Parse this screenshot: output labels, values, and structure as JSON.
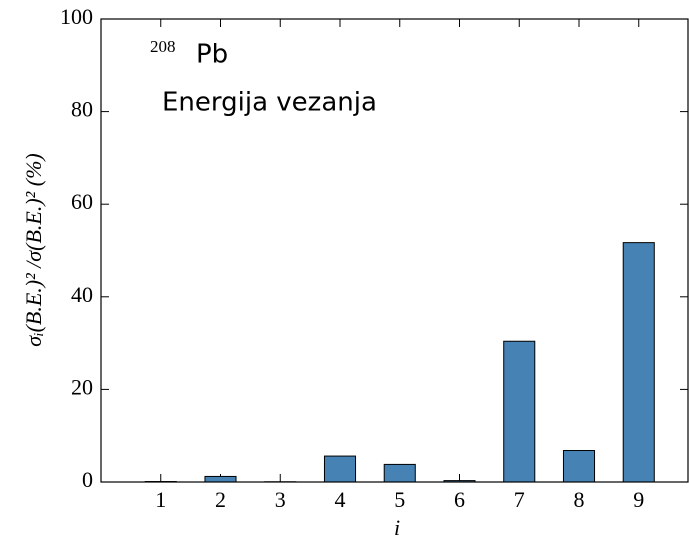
{
  "chart_data": {
    "type": "bar",
    "title_superscript": "208",
    "title": "Pb",
    "subtitle": "Energija vezanja",
    "x_label": "i",
    "y_label": "σᵢ(B.E.)² /σ(B.E.)² (%)",
    "categories": [
      "1",
      "2",
      "3",
      "4",
      "5",
      "6",
      "7",
      "8",
      "9"
    ],
    "values": [
      0.1,
      1.2,
      0.05,
      5.6,
      3.8,
      0.3,
      30.4,
      6.8,
      51.7
    ],
    "color": "#4682b4",
    "ylim": [
      0,
      100
    ],
    "yticks": [
      0,
      20,
      40,
      60,
      80,
      100
    ]
  }
}
